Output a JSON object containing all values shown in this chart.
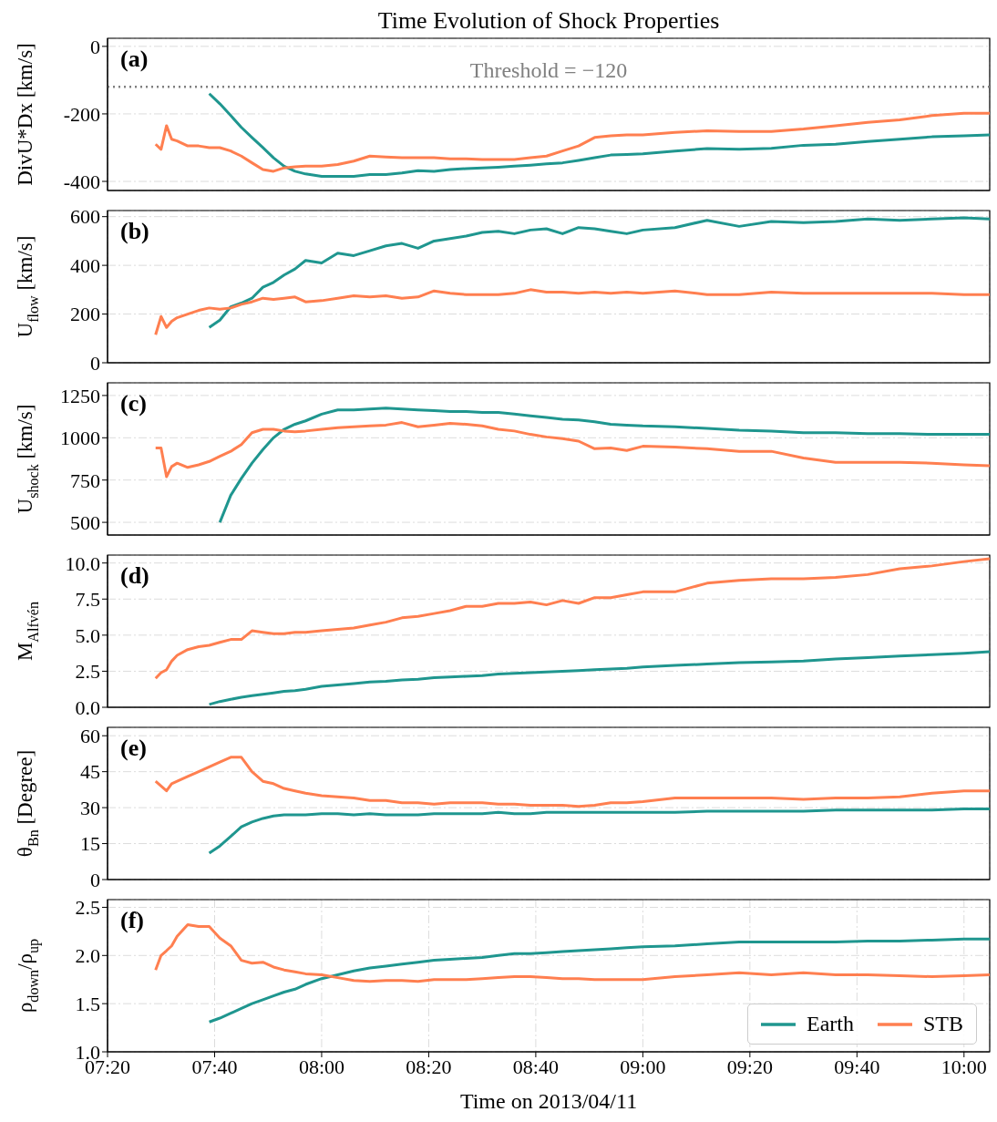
{
  "chart_data": [
    {
      "type": "line",
      "title": "Time Evolution of Shock Properties",
      "ylabel": "DivU*Dx [km/s]",
      "annotations": [
        "(a)"
      ],
      "grid": true,
      "tick_labels": "y",
      "xlim": [
        7.333333,
        10.08
      ],
      "xticks": [
        {
          "value": 7.333333,
          "label": null
        },
        {
          "value": 7.666667,
          "label": null
        },
        {
          "value": 8,
          "label": null
        },
        {
          "value": 8.333333,
          "label": null
        },
        {
          "value": 8.666667,
          "label": null
        },
        {
          "value": 9,
          "label": null
        },
        {
          "value": 9.333333,
          "label": null
        },
        {
          "value": 9.666667,
          "label": null
        },
        {
          "value": 10,
          "label": null
        }
      ],
      "ylim": [
        -427,
        24
      ],
      "yticks": [
        -400,
        -200,
        0
      ],
      "ref_lines": [
        {
          "axis": "y",
          "value": -120,
          "label": "Threshold = −120",
          "color": "#808080",
          "line_style": "dotted"
        }
      ],
      "x": [
        7.483,
        7.5,
        7.517,
        7.533,
        7.55,
        7.583,
        7.617,
        7.65,
        7.683,
        7.717,
        7.75,
        7.783,
        7.817,
        7.85,
        7.883,
        7.917,
        7.95,
        8.0,
        8.05,
        8.1,
        8.15,
        8.2,
        8.25,
        8.3,
        8.35,
        8.4,
        8.45,
        8.5,
        8.55,
        8.6,
        8.65,
        8.7,
        8.75,
        8.8,
        8.85,
        8.9,
        8.95,
        9.0,
        9.1,
        9.2,
        9.3,
        9.4,
        9.5,
        9.6,
        9.7,
        9.8,
        9.9,
        10.0,
        10.08
      ],
      "series": [
        {
          "color": "#1f968f",
          "values": [
            null,
            null,
            null,
            null,
            null,
            null,
            null,
            -140,
            -170,
            -205,
            -240,
            -270,
            -300,
            -330,
            -355,
            -370,
            -378,
            -385,
            -385,
            -385,
            -380,
            -380,
            -375,
            -368,
            -370,
            -365,
            -362,
            -360,
            -358,
            -355,
            -352,
            -348,
            -345,
            -338,
            -330,
            -322,
            -320,
            -318,
            -310,
            -303,
            -305,
            -302,
            -293,
            -290,
            -282,
            -275,
            -268,
            -265,
            -262
          ]
        },
        {
          "color": "#ff7f50",
          "values": [
            -290,
            -305,
            -235,
            -275,
            -280,
            -295,
            -295,
            -300,
            -300,
            -310,
            -325,
            -345,
            -365,
            -370,
            -360,
            -357,
            -355,
            -355,
            -350,
            -340,
            -325,
            -328,
            -330,
            -330,
            -330,
            -333,
            -333,
            -335,
            -335,
            -335,
            -330,
            -325,
            -310,
            -295,
            -270,
            -265,
            -262,
            -262,
            -255,
            -250,
            -252,
            -252,
            -245,
            -235,
            -225,
            -218,
            -205,
            -198,
            -198
          ]
        }
      ]
    },
    {
      "type": "line",
      "ylabel": "U$_{flow}$ [km/s]",
      "annotations": [
        "(b)"
      ],
      "grid": true,
      "tick_labels": "y",
      "xlim": [
        7.333333,
        10.08
      ],
      "xticks": [
        {
          "value": 7.333333,
          "label": null
        },
        {
          "value": 7.666667,
          "label": null
        },
        {
          "value": 8,
          "label": null
        },
        {
          "value": 8.333333,
          "label": null
        },
        {
          "value": 8.666667,
          "label": null
        },
        {
          "value": 9,
          "label": null
        },
        {
          "value": 9.333333,
          "label": null
        },
        {
          "value": 9.666667,
          "label": null
        },
        {
          "value": 10,
          "label": null
        }
      ],
      "ylim": [
        0,
        625
      ],
      "yticks": [
        0,
        200,
        400,
        600
      ],
      "x": [
        7.483,
        7.5,
        7.517,
        7.533,
        7.55,
        7.583,
        7.617,
        7.65,
        7.683,
        7.717,
        7.75,
        7.783,
        7.817,
        7.85,
        7.883,
        7.917,
        7.95,
        8.0,
        8.05,
        8.1,
        8.15,
        8.2,
        8.25,
        8.3,
        8.35,
        8.4,
        8.45,
        8.5,
        8.55,
        8.6,
        8.65,
        8.7,
        8.75,
        8.8,
        8.85,
        8.9,
        8.95,
        9.0,
        9.1,
        9.2,
        9.3,
        9.4,
        9.5,
        9.6,
        9.7,
        9.8,
        9.9,
        10.0,
        10.08
      ],
      "series": [
        {
          "color": "#1f968f",
          "values": [
            null,
            null,
            null,
            null,
            null,
            null,
            null,
            145,
            175,
            230,
            245,
            265,
            310,
            330,
            360,
            385,
            420,
            410,
            450,
            440,
            460,
            480,
            490,
            470,
            500,
            510,
            520,
            535,
            540,
            530,
            545,
            550,
            530,
            555,
            550,
            540,
            530,
            545,
            555,
            585,
            560,
            580,
            575,
            580,
            590,
            585,
            590,
            595,
            590
          ]
        },
        {
          "color": "#ff7f50",
          "values": [
            115,
            190,
            145,
            170,
            185,
            200,
            215,
            225,
            220,
            225,
            240,
            250,
            265,
            260,
            265,
            270,
            250,
            255,
            265,
            275,
            270,
            275,
            265,
            270,
            295,
            285,
            280,
            280,
            280,
            285,
            300,
            290,
            290,
            285,
            290,
            285,
            290,
            285,
            295,
            280,
            280,
            290,
            285,
            285,
            285,
            285,
            285,
            280,
            280
          ]
        }
      ]
    },
    {
      "type": "line",
      "ylabel": "U$_{shock}$ [km/s]",
      "annotations": [
        "(c)"
      ],
      "grid": true,
      "tick_labels": "y",
      "xlim": [
        7.333333,
        10.08
      ],
      "xticks": [
        {
          "value": 7.333333,
          "label": null
        },
        {
          "value": 7.666667,
          "label": null
        },
        {
          "value": 8,
          "label": null
        },
        {
          "value": 8.333333,
          "label": null
        },
        {
          "value": 8.666667,
          "label": null
        },
        {
          "value": 9,
          "label": null
        },
        {
          "value": 9.333333,
          "label": null
        },
        {
          "value": 9.666667,
          "label": null
        },
        {
          "value": 10,
          "label": null
        }
      ],
      "ylim": [
        425,
        1325
      ],
      "yticks": [
        500,
        750,
        1000,
        1250
      ],
      "x": [
        7.483,
        7.5,
        7.517,
        7.533,
        7.55,
        7.583,
        7.617,
        7.65,
        7.683,
        7.717,
        7.75,
        7.783,
        7.817,
        7.85,
        7.883,
        7.917,
        7.95,
        8.0,
        8.05,
        8.1,
        8.15,
        8.2,
        8.25,
        8.3,
        8.35,
        8.4,
        8.45,
        8.5,
        8.55,
        8.6,
        8.65,
        8.7,
        8.75,
        8.8,
        8.85,
        8.9,
        8.95,
        9.0,
        9.1,
        9.2,
        9.3,
        9.4,
        9.5,
        9.6,
        9.7,
        9.8,
        9.9,
        10.0,
        10.08
      ],
      "series": [
        {
          "color": "#1f968f",
          "values": [
            null,
            null,
            null,
            null,
            null,
            null,
            null,
            null,
            500,
            660,
            760,
            850,
            930,
            1000,
            1050,
            1080,
            1100,
            1140,
            1165,
            1165,
            1170,
            1175,
            1170,
            1165,
            1160,
            1155,
            1155,
            1150,
            1150,
            1140,
            1130,
            1120,
            1110,
            1105,
            1095,
            1080,
            1075,
            1070,
            1065,
            1055,
            1045,
            1040,
            1030,
            1030,
            1025,
            1025,
            1020,
            1020,
            1020
          ]
        },
        {
          "color": "#ff7f50",
          "values": [
            940,
            940,
            770,
            830,
            850,
            825,
            840,
            860,
            890,
            920,
            960,
            1030,
            1050,
            1050,
            1040,
            1035,
            1040,
            1050,
            1060,
            1065,
            1070,
            1075,
            1090,
            1065,
            1075,
            1085,
            1080,
            1070,
            1050,
            1040,
            1020,
            1005,
            995,
            980,
            935,
            940,
            925,
            950,
            945,
            935,
            920,
            920,
            880,
            855,
            855,
            855,
            850,
            840,
            835
          ]
        }
      ]
    },
    {
      "type": "line",
      "ylabel": "M$_{Alfvén}$",
      "annotations": [
        "(d)"
      ],
      "grid": true,
      "tick_labels": "y",
      "xlim": [
        7.333333,
        10.08
      ],
      "xticks": [
        {
          "value": 7.333333,
          "label": null
        },
        {
          "value": 7.666667,
          "label": null
        },
        {
          "value": 8,
          "label": null
        },
        {
          "value": 8.333333,
          "label": null
        },
        {
          "value": 8.666667,
          "label": null
        },
        {
          "value": 9,
          "label": null
        },
        {
          "value": 9.333333,
          "label": null
        },
        {
          "value": 9.666667,
          "label": null
        },
        {
          "value": 10,
          "label": null
        }
      ],
      "ylim": [
        0,
        10.55
      ],
      "yticks": [
        {
          "value": 0,
          "label": "0.0"
        },
        2.5,
        {
          "value": 5,
          "label": "5.0"
        },
        7.5,
        {
          "value": 10,
          "label": "10.0"
        }
      ],
      "x": [
        7.483,
        7.5,
        7.517,
        7.533,
        7.55,
        7.583,
        7.617,
        7.65,
        7.683,
        7.717,
        7.75,
        7.783,
        7.817,
        7.85,
        7.883,
        7.917,
        7.95,
        8.0,
        8.05,
        8.1,
        8.15,
        8.2,
        8.25,
        8.3,
        8.35,
        8.4,
        8.45,
        8.5,
        8.55,
        8.6,
        8.65,
        8.7,
        8.75,
        8.8,
        8.85,
        8.9,
        8.95,
        9.0,
        9.1,
        9.2,
        9.3,
        9.4,
        9.5,
        9.6,
        9.7,
        9.8,
        9.9,
        10.0,
        10.08
      ],
      "series": [
        {
          "color": "#1f968f",
          "values": [
            null,
            null,
            null,
            null,
            null,
            null,
            null,
            0.2,
            0.4,
            0.55,
            0.7,
            0.8,
            0.9,
            1.0,
            1.1,
            1.15,
            1.25,
            1.45,
            1.55,
            1.65,
            1.75,
            1.8,
            1.9,
            1.95,
            2.05,
            2.1,
            2.15,
            2.2,
            2.3,
            2.35,
            2.4,
            2.45,
            2.5,
            2.55,
            2.6,
            2.65,
            2.7,
            2.8,
            2.9,
            3.0,
            3.1,
            3.15,
            3.2,
            3.35,
            3.45,
            3.55,
            3.65,
            3.75,
            3.85
          ]
        },
        {
          "color": "#ff7f50",
          "values": [
            2.0,
            2.4,
            2.6,
            3.2,
            3.6,
            4.0,
            4.2,
            4.3,
            4.5,
            4.7,
            4.7,
            5.3,
            5.2,
            5.1,
            5.1,
            5.2,
            5.2,
            5.3,
            5.4,
            5.5,
            5.7,
            5.9,
            6.2,
            6.3,
            6.5,
            6.7,
            7.0,
            7.0,
            7.2,
            7.2,
            7.3,
            7.1,
            7.4,
            7.2,
            7.6,
            7.6,
            7.8,
            8.0,
            8.0,
            8.6,
            8.8,
            8.9,
            8.9,
            9.0,
            9.2,
            9.6,
            9.8,
            10.1,
            10.3
          ]
        }
      ]
    },
    {
      "type": "line",
      "ylabel": "θ$_{Bn}$ [Degree]",
      "annotations": [
        "(e)"
      ],
      "grid": true,
      "tick_labels": "y",
      "xlim": [
        7.333333,
        10.08
      ],
      "xticks": [
        {
          "value": 7.333333,
          "label": null
        },
        {
          "value": 7.666667,
          "label": null
        },
        {
          "value": 8,
          "label": null
        },
        {
          "value": 8.333333,
          "label": null
        },
        {
          "value": 8.666667,
          "label": null
        },
        {
          "value": 9,
          "label": null
        },
        {
          "value": 9.333333,
          "label": null
        },
        {
          "value": 9.666667,
          "label": null
        },
        {
          "value": 10,
          "label": null
        }
      ],
      "ylim": [
        0,
        63.5
      ],
      "yticks": [
        0,
        15,
        30,
        45,
        60
      ],
      "x": [
        7.483,
        7.5,
        7.517,
        7.533,
        7.55,
        7.583,
        7.617,
        7.65,
        7.683,
        7.717,
        7.75,
        7.783,
        7.817,
        7.85,
        7.883,
        7.917,
        7.95,
        8.0,
        8.05,
        8.1,
        8.15,
        8.2,
        8.25,
        8.3,
        8.35,
        8.4,
        8.45,
        8.5,
        8.55,
        8.6,
        8.65,
        8.7,
        8.75,
        8.8,
        8.85,
        8.9,
        8.95,
        9.0,
        9.1,
        9.2,
        9.3,
        9.4,
        9.5,
        9.6,
        9.7,
        9.8,
        9.9,
        10.0,
        10.08
      ],
      "series": [
        {
          "color": "#1f968f",
          "values": [
            null,
            null,
            null,
            null,
            null,
            null,
            null,
            11,
            14,
            18,
            22,
            24,
            25.5,
            26.5,
            27,
            27,
            27,
            27.5,
            27.5,
            27,
            27.5,
            27,
            27,
            27,
            27.5,
            27.5,
            27.5,
            27.5,
            28,
            27.5,
            27.5,
            28,
            28,
            28,
            28,
            28,
            28,
            28,
            28,
            28.5,
            28.5,
            28.5,
            28.5,
            29,
            29,
            29,
            29,
            29.5,
            29.5
          ]
        },
        {
          "color": "#ff7f50",
          "values": [
            41,
            39,
            37,
            40,
            41,
            43,
            45,
            47,
            49,
            51,
            51,
            45,
            41,
            40,
            38,
            37,
            36,
            35,
            34.5,
            34,
            33,
            33,
            32,
            32,
            31.5,
            32,
            32,
            32,
            31.5,
            31.5,
            31,
            31,
            31,
            30.5,
            31,
            32,
            32,
            32.5,
            34,
            34,
            34,
            34,
            33.5,
            34,
            34,
            34.5,
            36,
            37,
            37
          ]
        }
      ]
    },
    {
      "type": "line",
      "ylabel": "ρ$_{down}$/ρ$_{up}$",
      "xlabel": "Time on 2013/04/11",
      "annotations": [
        "(f)"
      ],
      "grid": true,
      "legend": "bottom right",
      "xlim": [
        7.333333,
        10.08
      ],
      "xticks": [
        {
          "value": 7.333333,
          "label": "07:20"
        },
        {
          "value": 7.666667,
          "label": "07:40"
        },
        {
          "value": 8,
          "label": "08:00"
        },
        {
          "value": 8.333333,
          "label": "08:20"
        },
        {
          "value": 8.666667,
          "label": "08:40"
        },
        {
          "value": 9,
          "label": "09:00"
        },
        {
          "value": 9.333333,
          "label": "09:20"
        },
        {
          "value": 9.666667,
          "label": "09:40"
        },
        {
          "value": 10,
          "label": "10:00"
        }
      ],
      "ylim": [
        1,
        2.58
      ],
      "yticks": [
        {
          "value": 1,
          "label": "1.0"
        },
        1.5,
        {
          "value": 2,
          "label": "2.0"
        },
        2.5
      ],
      "x": [
        7.483,
        7.5,
        7.517,
        7.533,
        7.55,
        7.583,
        7.617,
        7.65,
        7.683,
        7.717,
        7.75,
        7.783,
        7.817,
        7.85,
        7.883,
        7.917,
        7.95,
        8.0,
        8.05,
        8.1,
        8.15,
        8.2,
        8.25,
        8.3,
        8.35,
        8.4,
        8.45,
        8.5,
        8.55,
        8.6,
        8.65,
        8.7,
        8.75,
        8.8,
        8.85,
        8.9,
        8.95,
        9.0,
        9.1,
        9.2,
        9.3,
        9.4,
        9.5,
        9.6,
        9.7,
        9.8,
        9.9,
        10.0,
        10.08
      ],
      "series": [
        {
          "name": "Earth",
          "color": "#1f968f",
          "values": [
            null,
            null,
            null,
            null,
            null,
            null,
            null,
            1.31,
            1.35,
            1.4,
            1.45,
            1.5,
            1.54,
            1.58,
            1.62,
            1.65,
            1.7,
            1.76,
            1.8,
            1.84,
            1.87,
            1.89,
            1.91,
            1.93,
            1.95,
            1.96,
            1.97,
            1.98,
            2.0,
            2.02,
            2.02,
            2.03,
            2.04,
            2.05,
            2.06,
            2.07,
            2.08,
            2.09,
            2.1,
            2.12,
            2.14,
            2.14,
            2.14,
            2.14,
            2.15,
            2.15,
            2.16,
            2.17,
            2.17
          ]
        },
        {
          "name": "STB",
          "color": "#ff7f50",
          "values": [
            1.85,
            2.0,
            2.05,
            2.1,
            2.2,
            2.32,
            2.3,
            2.3,
            2.18,
            2.1,
            1.95,
            1.92,
            1.93,
            1.88,
            1.85,
            1.83,
            1.81,
            1.8,
            1.77,
            1.74,
            1.73,
            1.74,
            1.74,
            1.73,
            1.75,
            1.75,
            1.75,
            1.76,
            1.77,
            1.78,
            1.78,
            1.77,
            1.76,
            1.76,
            1.75,
            1.75,
            1.75,
            1.75,
            1.78,
            1.8,
            1.82,
            1.8,
            1.82,
            1.8,
            1.8,
            1.79,
            1.78,
            1.79,
            1.8
          ]
        }
      ]
    }
  ]
}
